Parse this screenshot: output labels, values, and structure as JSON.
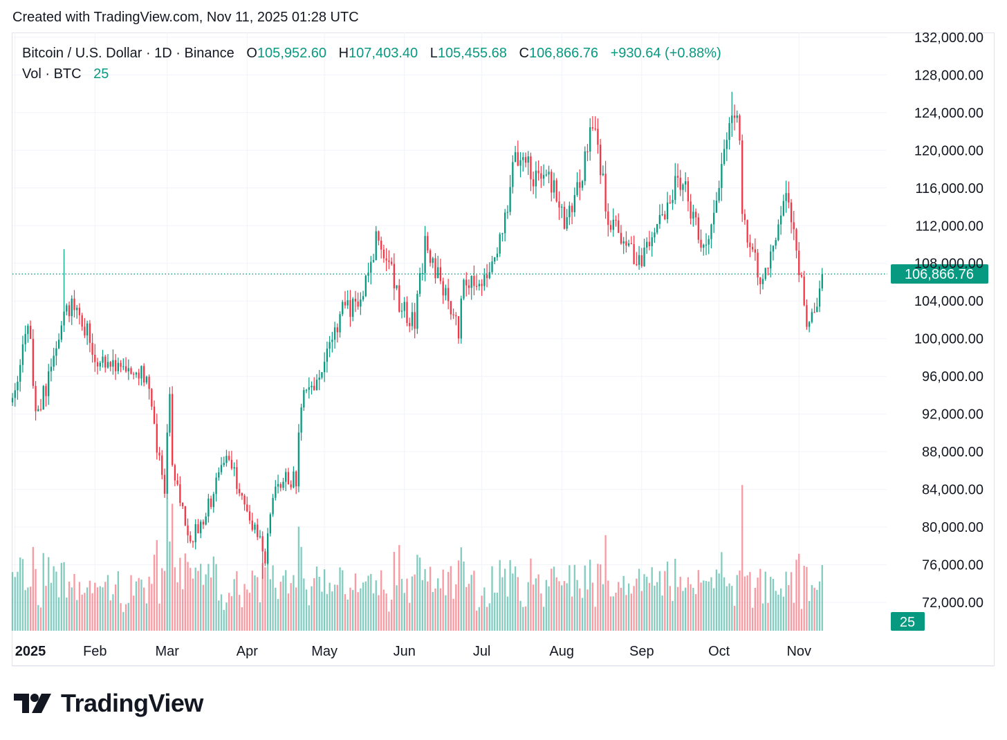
{
  "header": {
    "text": "Created with TradingView.com, Nov 11, 2025 01:28 UTC"
  },
  "legend": {
    "symbol": "Bitcoin / U.S. Dollar · 1D · Binance",
    "o_label": "O",
    "o_value": "105,952.60",
    "h_label": "H",
    "h_value": "107,403.40",
    "l_label": "L",
    "l_value": "105,455.68",
    "c_label": "C",
    "c_value": "106,866.76",
    "change": "+930.64 (+0.88%)",
    "vol_label": "Vol · BTC",
    "vol_value": "25"
  },
  "footer": {
    "brand": "TradingView"
  },
  "colors": {
    "up": "#089981",
    "down": "#f23645",
    "grid": "#f0f3fa",
    "text": "#131722"
  },
  "chart_data": {
    "type": "candlestick",
    "symbol": "BTCUSD",
    "interval": "1D",
    "x_months": [
      {
        "label": "2025",
        "date": "2025-01-01"
      },
      {
        "label": "Feb",
        "date": "2025-02-01"
      },
      {
        "label": "Mar",
        "date": "2025-03-01"
      },
      {
        "label": "Apr",
        "date": "2025-04-01"
      },
      {
        "label": "May",
        "date": "2025-05-01"
      },
      {
        "label": "Jun",
        "date": "2025-06-01"
      },
      {
        "label": "Jul",
        "date": "2025-07-01"
      },
      {
        "label": "Aug",
        "date": "2025-08-01"
      },
      {
        "label": "Sep",
        "date": "2025-09-01"
      },
      {
        "label": "Oct",
        "date": "2025-10-01"
      },
      {
        "label": "Nov",
        "date": "2025-11-01"
      }
    ],
    "x_range": [
      "2024-12-31",
      "2025-12-05"
    ],
    "y_ticks": [
      "132,000.00",
      "128,000.00",
      "124,000.00",
      "120,000.00",
      "116,000.00",
      "112,000.00",
      "108,000.00",
      "104,000.00",
      "100,000.00",
      "96,000.00",
      "92,000.00",
      "88,000.00",
      "84,000.00",
      "80,000.00",
      "76,000.00",
      "72,000.00"
    ],
    "ylim": [
      69000,
      132500
    ],
    "grid": true,
    "last_price": 106866.76,
    "last_price_label": "106,866.76",
    "last_volume_label": "25",
    "close_path": [
      [
        "2024-12-31",
        93500
      ],
      [
        "2025-01-06",
        102200
      ],
      [
        "2025-01-09",
        92500
      ],
      [
        "2025-01-13",
        94500
      ],
      [
        "2025-01-20",
        102300
      ],
      [
        "2025-01-23",
        104000
      ],
      [
        "2025-01-27",
        102000
      ],
      [
        "2025-02-02",
        97600
      ],
      [
        "2025-02-06",
        96500
      ],
      [
        "2025-02-14",
        97500
      ],
      [
        "2025-02-21",
        96000
      ],
      [
        "2025-02-25",
        88500
      ],
      [
        "2025-02-28",
        84300
      ],
      [
        "2025-03-02",
        94200
      ],
      [
        "2025-03-03",
        86000
      ],
      [
        "2025-03-10",
        78600
      ],
      [
        "2025-03-18",
        82700
      ],
      [
        "2025-03-24",
        88000
      ],
      [
        "2025-03-31",
        82500
      ],
      [
        "2025-04-06",
        78300
      ],
      [
        "2025-04-08",
        76300
      ],
      [
        "2025-04-12",
        85000
      ],
      [
        "2025-04-20",
        85100
      ],
      [
        "2025-04-22",
        93400
      ],
      [
        "2025-04-28",
        94900
      ],
      [
        "2025-05-08",
        103000
      ],
      [
        "2025-05-14",
        103500
      ],
      [
        "2025-05-22",
        111500
      ],
      [
        "2025-05-30",
        104000
      ],
      [
        "2025-06-05",
        101500
      ],
      [
        "2025-06-09",
        110200
      ],
      [
        "2025-06-17",
        104600
      ],
      [
        "2025-06-22",
        101000
      ],
      [
        "2025-06-24",
        105900
      ],
      [
        "2025-07-01",
        105700
      ],
      [
        "2025-07-09",
        111000
      ],
      [
        "2025-07-14",
        119800
      ],
      [
        "2025-07-21",
        117400
      ],
      [
        "2025-07-26",
        118000
      ],
      [
        "2025-08-02",
        112500
      ],
      [
        "2025-08-08",
        116500
      ],
      [
        "2025-08-13",
        123300
      ],
      [
        "2025-08-19",
        113000
      ],
      [
        "2025-08-25",
        110000
      ],
      [
        "2025-09-01",
        108300
      ],
      [
        "2025-09-07",
        111100
      ],
      [
        "2025-09-13",
        116000
      ],
      [
        "2025-09-17",
        116500
      ],
      [
        "2025-09-25",
        109000
      ],
      [
        "2025-09-29",
        114300
      ],
      [
        "2025-10-06",
        124700
      ],
      [
        "2025-10-09",
        121500
      ],
      [
        "2025-10-10",
        113000
      ],
      [
        "2025-10-17",
        106400
      ],
      [
        "2025-10-21",
        108400
      ],
      [
        "2025-10-27",
        114500
      ],
      [
        "2025-10-31",
        109500
      ],
      [
        "2025-11-04",
        101500
      ],
      [
        "2025-11-07",
        102000
      ],
      [
        "2025-11-10",
        106866.76
      ]
    ],
    "annotated_extremes": [
      {
        "date": "2025-01-20",
        "high": 109500
      },
      {
        "date": "2025-04-07",
        "low": 74500
      },
      {
        "date": "2025-10-06",
        "high": 126200
      },
      {
        "date": "2025-10-10",
        "volume_spike": true
      }
    ],
    "volume_scale_max": 2.2,
    "series": [
      {
        "name": "Vol · BTC",
        "type": "volume"
      }
    ]
  }
}
